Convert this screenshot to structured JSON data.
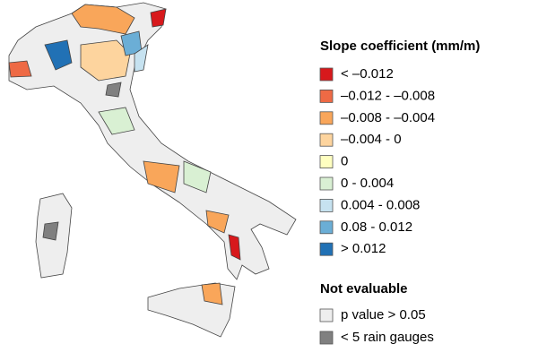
{
  "legend": {
    "title": "Slope coefficient (mm/m)",
    "items": [
      {
        "label": "< –0.012",
        "color": "#d7191c"
      },
      {
        "label": "–0.012 - –0.008",
        "color": "#ee6a45"
      },
      {
        "label": "–0.008 - –0.004",
        "color": "#f9a65a"
      },
      {
        "label": "–0.004 - 0",
        "color": "#fdd49e"
      },
      {
        "label": "0",
        "color": "#ffffc0"
      },
      {
        "label": "0 - 0.004",
        "color": "#d9f0d3"
      },
      {
        "label": "0.004 - 0.008",
        "color": "#c6e2f0"
      },
      {
        "label": "0.08 - 0.012",
        "color": "#6baed6"
      },
      {
        "label": "> 0.012",
        "color": "#2171b5"
      }
    ]
  },
  "not_evaluable": {
    "title": "Not evaluable",
    "items": [
      {
        "label": "p value > 0.05",
        "color": "#eeeeee"
      },
      {
        "label": "< 5 rain gauges",
        "color": "#808080"
      }
    ]
  }
}
